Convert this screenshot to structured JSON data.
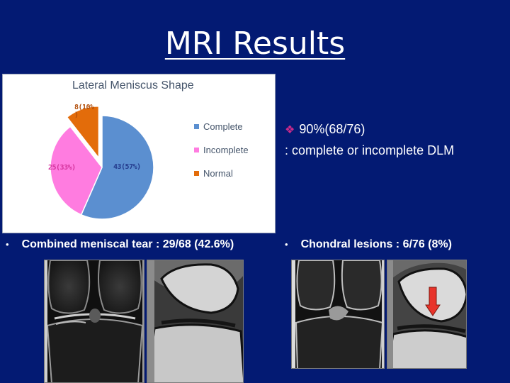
{
  "title": "MRI Results",
  "chart_data": {
    "type": "pie",
    "title": "Lateral Meniscus Shape",
    "categories": [
      "Complete",
      "Incomplete",
      "Normal"
    ],
    "values": [
      43,
      25,
      8
    ],
    "data_labels": [
      "43(57%)",
      "25(33%)",
      "8(10%\n)"
    ],
    "colors": [
      "#5b8fd0",
      "#ff7ce0",
      "#e36c0a"
    ],
    "legend_position": "right"
  },
  "summary": {
    "bullet_icon": "diamond-bullet-icon",
    "line1": "90%(68/76)",
    "line2": ": complete or incomplete DLM"
  },
  "bullets": [
    {
      "dot": "•",
      "text": "Combined meniscal tear : 29/68 (42.6%)"
    },
    {
      "dot": "•",
      "text": "Chondral lesions : 6/76 (8%)"
    }
  ],
  "colors": {
    "background": "#031a73",
    "text": "#ffffff",
    "arrow": "#e8332a"
  }
}
